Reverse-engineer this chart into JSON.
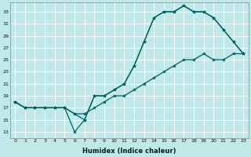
{
  "xlabel": "Humidex (Indice chaleur)",
  "bg_color": "#c0e8e8",
  "line_color": "#006060",
  "xlim": [
    -0.5,
    23.5
  ],
  "ylim": [
    12,
    34.5
  ],
  "xticks": [
    0,
    1,
    2,
    3,
    4,
    5,
    6,
    7,
    8,
    9,
    10,
    11,
    12,
    13,
    14,
    15,
    16,
    17,
    18,
    19,
    20,
    21,
    22,
    23
  ],
  "yticks": [
    13,
    15,
    17,
    19,
    21,
    23,
    25,
    27,
    29,
    31,
    33
  ],
  "line1_x": [
    0,
    1,
    2,
    3,
    4,
    5,
    6,
    7,
    8,
    9,
    10,
    11,
    12,
    13,
    14,
    15,
    16,
    17,
    18,
    19,
    20,
    21,
    22,
    23
  ],
  "line1_y": [
    18,
    17,
    17,
    17,
    17,
    17,
    16,
    15,
    19,
    19,
    20,
    21,
    24,
    28,
    32,
    33,
    33,
    34,
    33,
    33,
    32,
    30,
    28,
    26
  ],
  "line2_x": [
    0,
    1,
    2,
    3,
    4,
    5,
    6,
    7,
    8,
    9,
    10,
    11,
    12,
    13,
    14,
    15,
    16,
    17,
    18,
    19,
    20,
    21,
    22,
    23
  ],
  "line2_y": [
    18,
    17,
    17,
    17,
    17,
    17,
    13,
    15,
    19,
    19,
    20,
    21,
    24,
    28,
    32,
    33,
    33,
    34,
    33,
    33,
    32,
    30,
    28,
    26
  ],
  "line3_x": [
    0,
    1,
    2,
    3,
    4,
    5,
    6,
    7,
    8,
    9,
    10,
    11,
    12,
    13,
    14,
    15,
    16,
    17,
    18,
    19,
    20,
    21,
    22,
    23
  ],
  "line3_y": [
    18,
    17,
    17,
    17,
    17,
    17,
    16,
    16,
    17,
    18,
    19,
    19,
    20,
    21,
    22,
    23,
    24,
    25,
    25,
    26,
    25,
    25,
    26,
    26
  ],
  "grid_color": "#ffffff",
  "markersize": 3.0,
  "linewidth": 0.9
}
